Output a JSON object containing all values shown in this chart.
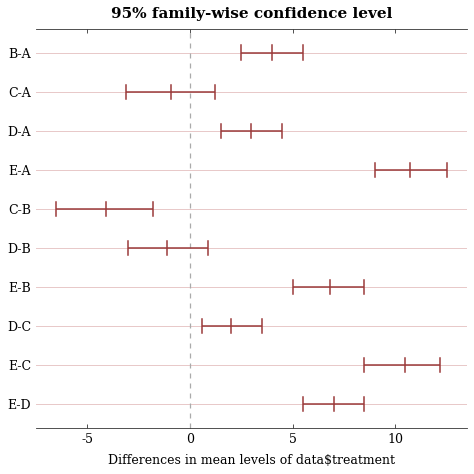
{
  "title": "95% family-wise confidence level",
  "xlabel": "Differences in mean levels of data$treatment",
  "labels": [
    "B-A",
    "C-A",
    "D-A",
    "E-A",
    "C-B",
    "D-B",
    "E-B",
    "D-C",
    "E-C",
    "E-D"
  ],
  "centers": [
    4.0,
    -0.9,
    3.0,
    10.7,
    -4.1,
    -1.1,
    6.8,
    2.0,
    10.5,
    7.0
  ],
  "lowers": [
    2.5,
    -3.1,
    1.5,
    9.0,
    -6.5,
    -3.0,
    5.0,
    0.6,
    8.5,
    5.5
  ],
  "uppers": [
    5.5,
    1.2,
    4.5,
    12.5,
    -1.8,
    0.9,
    8.5,
    3.5,
    12.2,
    8.5
  ],
  "xlim": [
    -7.5,
    13.5
  ],
  "xticks": [
    -5,
    0,
    5,
    10
  ],
  "color": "#9b3a3a",
  "dashed_line_color": "#aaaaaa",
  "background_color": "#ffffff",
  "panel_background": "#ffffff",
  "grid_color": "#e8c8c8",
  "capsize": 0.18,
  "linewidth": 1.1,
  "title_fontsize": 11,
  "label_fontsize": 9,
  "tick_fontsize": 9
}
